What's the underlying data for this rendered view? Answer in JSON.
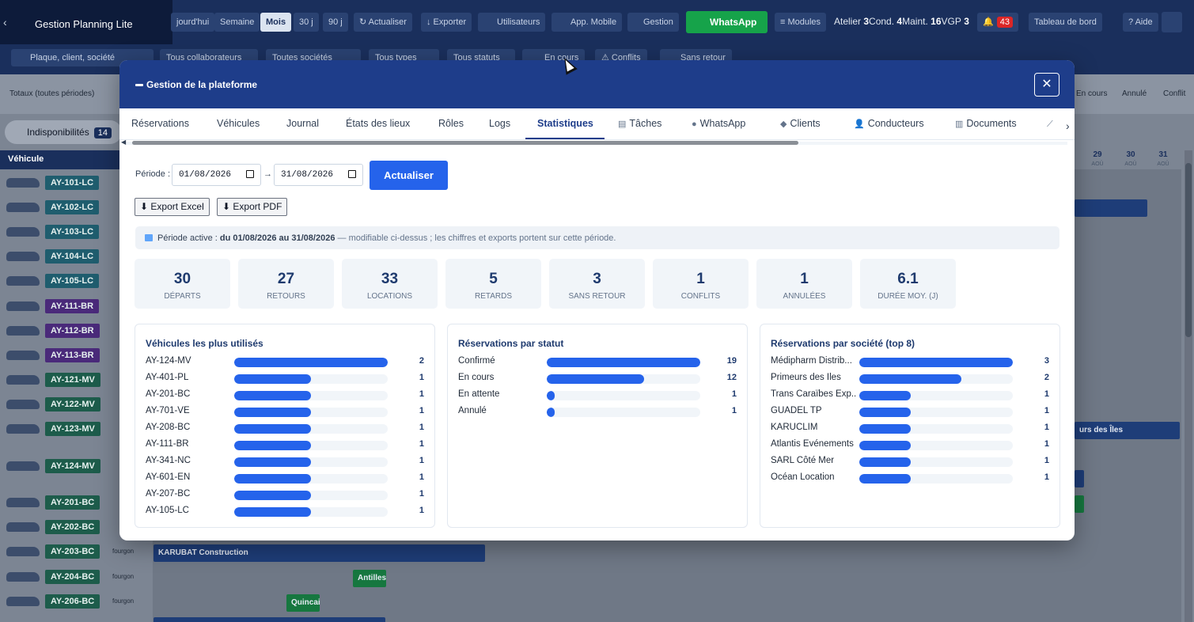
{
  "app": {
    "title": "Gestion Planning Lite",
    "view_buttons": [
      "jourd'hui",
      "Semaine",
      "Mois",
      "30 j",
      "90 j"
    ],
    "actions": [
      "↻ Actualiser",
      "↓ Exporter",
      "Utilisateurs",
      "App. Mobile",
      "Gestion",
      "WhatsApp",
      "≡ Modules"
    ],
    "counters": {
      "atelier_label": "Atelier",
      "atelier": "3",
      "cond_label": "Cond.",
      "cond": "4",
      "maint_label": "Maint.",
      "maint": "16",
      "vgp_label": "VGP",
      "vgp": "3"
    },
    "alert_count": "43",
    "dashboard": "Tableau de bord",
    "help": "? Aide",
    "filters": {
      "search_placeholder": "Plaque, client, société",
      "collab": "Tous collaborateurs",
      "societes": "Toutes sociétés",
      "types": "Tous types",
      "statuts": "Tous statuts",
      "en_cours": "En cours",
      "conflits": "⚠ Conflits",
      "sans_retour": "Sans retour"
    },
    "totaux": "Totaux (toutes périodes)",
    "legend": [
      "En cours",
      "Annulé",
      "Conflit"
    ],
    "indisponibilites": "Indisponibilités",
    "indisponibilites_count": "14",
    "vehicle_header": "Véhicule",
    "days": [
      {
        "d": "29",
        "m": "AOÛ"
      },
      {
        "d": "30",
        "m": "AOÛ"
      },
      {
        "d": "31",
        "m": "AOÛ"
      }
    ],
    "vehicles": [
      {
        "plate": "AY-101-LC",
        "color": "teal",
        "type": ""
      },
      {
        "plate": "AY-102-LC",
        "color": "teal",
        "type": ""
      },
      {
        "plate": "AY-103-LC",
        "color": "teal",
        "type": ""
      },
      {
        "plate": "AY-104-LC",
        "color": "teal",
        "type": ""
      },
      {
        "plate": "AY-105-LC",
        "color": "teal",
        "type": ""
      },
      {
        "plate": "AY-111-BR",
        "color": "purple",
        "type": ""
      },
      {
        "plate": "AY-112-BR",
        "color": "purple",
        "type": ""
      },
      {
        "plate": "AY-113-BR",
        "color": "purple",
        "type": ""
      },
      {
        "plate": "AY-121-MV",
        "color": "green",
        "type": ""
      },
      {
        "plate": "AY-122-MV",
        "color": "green",
        "type": ""
      },
      {
        "plate": "AY-123-MV",
        "color": "green",
        "type": ""
      },
      {
        "plate": "AY-124-MV",
        "color": "green",
        "type": ""
      },
      {
        "plate": "AY-201-BC",
        "color": "green",
        "type": ""
      },
      {
        "plate": "AY-202-BC",
        "color": "green",
        "type": ""
      },
      {
        "plate": "AY-203-BC",
        "color": "green",
        "type": "fourgon"
      },
      {
        "plate": "AY-204-BC",
        "color": "green",
        "type": "fourgon"
      },
      {
        "plate": "AY-206-BC",
        "color": "green",
        "type": "fourgon"
      }
    ],
    "bookings": {
      "karubat": "KARUBAT Construction",
      "antilles": "Antilles",
      "quincai": "Quincai",
      "primeurs": "urs des Îles"
    }
  },
  "modal": {
    "title": "Gestion de la plateforme",
    "close": "✕",
    "tabs": [
      "Réservations",
      "Véhicules",
      "Journal",
      "États des lieux",
      "Rôles",
      "Logs",
      "Statistiques",
      "Tâches",
      "WhatsApp",
      "Clients",
      "Conducteurs",
      "Documents"
    ],
    "active_tab": "Statistiques",
    "periode_label": "Période :",
    "date_from": "01/08/2026",
    "date_to": "31/08/2026",
    "refresh": "Actualiser",
    "export_excel": "⬇ Export Excel",
    "export_pdf": "⬇ Export PDF",
    "info": {
      "prefix": "Période active :",
      "range": "du 01/08/2026 au 31/08/2026",
      "suffix": "— modifiable ci-dessus ; les chiffres et exports portent sur cette période."
    },
    "stats": [
      {
        "value": "30",
        "label": "Départs"
      },
      {
        "value": "27",
        "label": "Retours"
      },
      {
        "value": "33",
        "label": "Locations"
      },
      {
        "value": "5",
        "label": "Retards"
      },
      {
        "value": "3",
        "label": "Sans retour"
      },
      {
        "value": "1",
        "label": "Conflits"
      },
      {
        "value": "1",
        "label": "Annulées"
      },
      {
        "value": "6.1",
        "label": "Durée moy. (j)"
      }
    ],
    "cards": [
      {
        "title": "Véhicules les plus utilisés",
        "max": 2,
        "rows": [
          {
            "label": "AY-124-MV",
            "value": 2
          },
          {
            "label": "AY-401-PL",
            "value": 1
          },
          {
            "label": "AY-201-BC",
            "value": 1
          },
          {
            "label": "AY-701-VE",
            "value": 1
          },
          {
            "label": "AY-208-BC",
            "value": 1
          },
          {
            "label": "AY-111-BR",
            "value": 1
          },
          {
            "label": "AY-341-NC",
            "value": 1
          },
          {
            "label": "AY-601-EN",
            "value": 1
          },
          {
            "label": "AY-207-BC",
            "value": 1
          },
          {
            "label": "AY-105-LC",
            "value": 1
          }
        ]
      },
      {
        "title": "Réservations par statut",
        "max": 19,
        "rows": [
          {
            "label": "Confirmé",
            "value": 19
          },
          {
            "label": "En cours",
            "value": 12
          },
          {
            "label": "En attente",
            "value": 1
          },
          {
            "label": "Annulé",
            "value": 1
          }
        ]
      },
      {
        "title": "Réservations par société (top 8)",
        "max": 3,
        "rows": [
          {
            "label": "Médipharm Distrib...",
            "value": 3
          },
          {
            "label": "Primeurs des Îles",
            "value": 2
          },
          {
            "label": "Trans Caraïbes Exp...",
            "value": 1
          },
          {
            "label": "GUADEL TP",
            "value": 1
          },
          {
            "label": "KARUCLIM",
            "value": 1
          },
          {
            "label": "Atlantis Événements",
            "value": 1
          },
          {
            "label": "SARL Côté Mer",
            "value": 1
          },
          {
            "label": "Océan Location",
            "value": 1
          }
        ]
      }
    ]
  }
}
